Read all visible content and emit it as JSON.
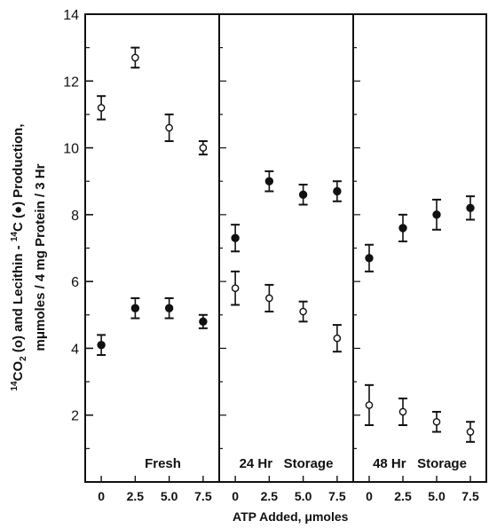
{
  "chart_data": {
    "type": "scatter",
    "y_axis": {
      "label_line1": [
        "14",
        "CO",
        "2",
        " (o) and Lecithin - ",
        "14",
        "C (●) Production,"
      ],
      "label_line2": "mμmoles / 4 mg Protein / 3 Hr",
      "ylim": [
        0,
        14
      ],
      "ticks": [
        2,
        4,
        6,
        8,
        10,
        12,
        14
      ]
    },
    "x_axis": {
      "label": "ATP Added, μmoles",
      "ticks": [
        "0",
        "2.5",
        "5.0",
        "7.5"
      ]
    },
    "panels": [
      {
        "label": "Fresh",
        "series": [
          {
            "marker": "open",
            "x": [
              0,
              2.5,
              5.0,
              7.5
            ],
            "y": [
              11.2,
              12.7,
              10.6,
              10.0
            ],
            "err": [
              0.35,
              0.3,
              0.4,
              0.2
            ]
          },
          {
            "marker": "filled",
            "x": [
              0,
              2.5,
              5.0,
              7.5
            ],
            "y": [
              4.1,
              5.2,
              5.2,
              4.8
            ],
            "err": [
              0.3,
              0.3,
              0.3,
              0.2
            ]
          }
        ]
      },
      {
        "label": "24 Hr   Storage",
        "series": [
          {
            "marker": "open",
            "x": [
              0,
              2.5,
              5.0,
              7.5
            ],
            "y": [
              5.8,
              5.5,
              5.1,
              4.3
            ],
            "err": [
              0.5,
              0.4,
              0.3,
              0.4
            ]
          },
          {
            "marker": "filled",
            "x": [
              0,
              2.5,
              5.0,
              7.5
            ],
            "y": [
              7.3,
              9.0,
              8.6,
              8.7
            ],
            "err": [
              0.4,
              0.3,
              0.3,
              0.3
            ]
          }
        ]
      },
      {
        "label": "48 Hr   Storage",
        "series": [
          {
            "marker": "open",
            "x": [
              0,
              2.5,
              5.0,
              7.5
            ],
            "y": [
              2.3,
              2.1,
              1.8,
              1.5
            ],
            "err": [
              0.6,
              0.4,
              0.3,
              0.3
            ]
          },
          {
            "marker": "filled",
            "x": [
              0,
              2.5,
              5.0,
              7.5
            ],
            "y": [
              6.7,
              7.6,
              8.0,
              8.2
            ],
            "err": [
              0.4,
              0.4,
              0.45,
              0.35
            ]
          }
        ]
      }
    ]
  }
}
